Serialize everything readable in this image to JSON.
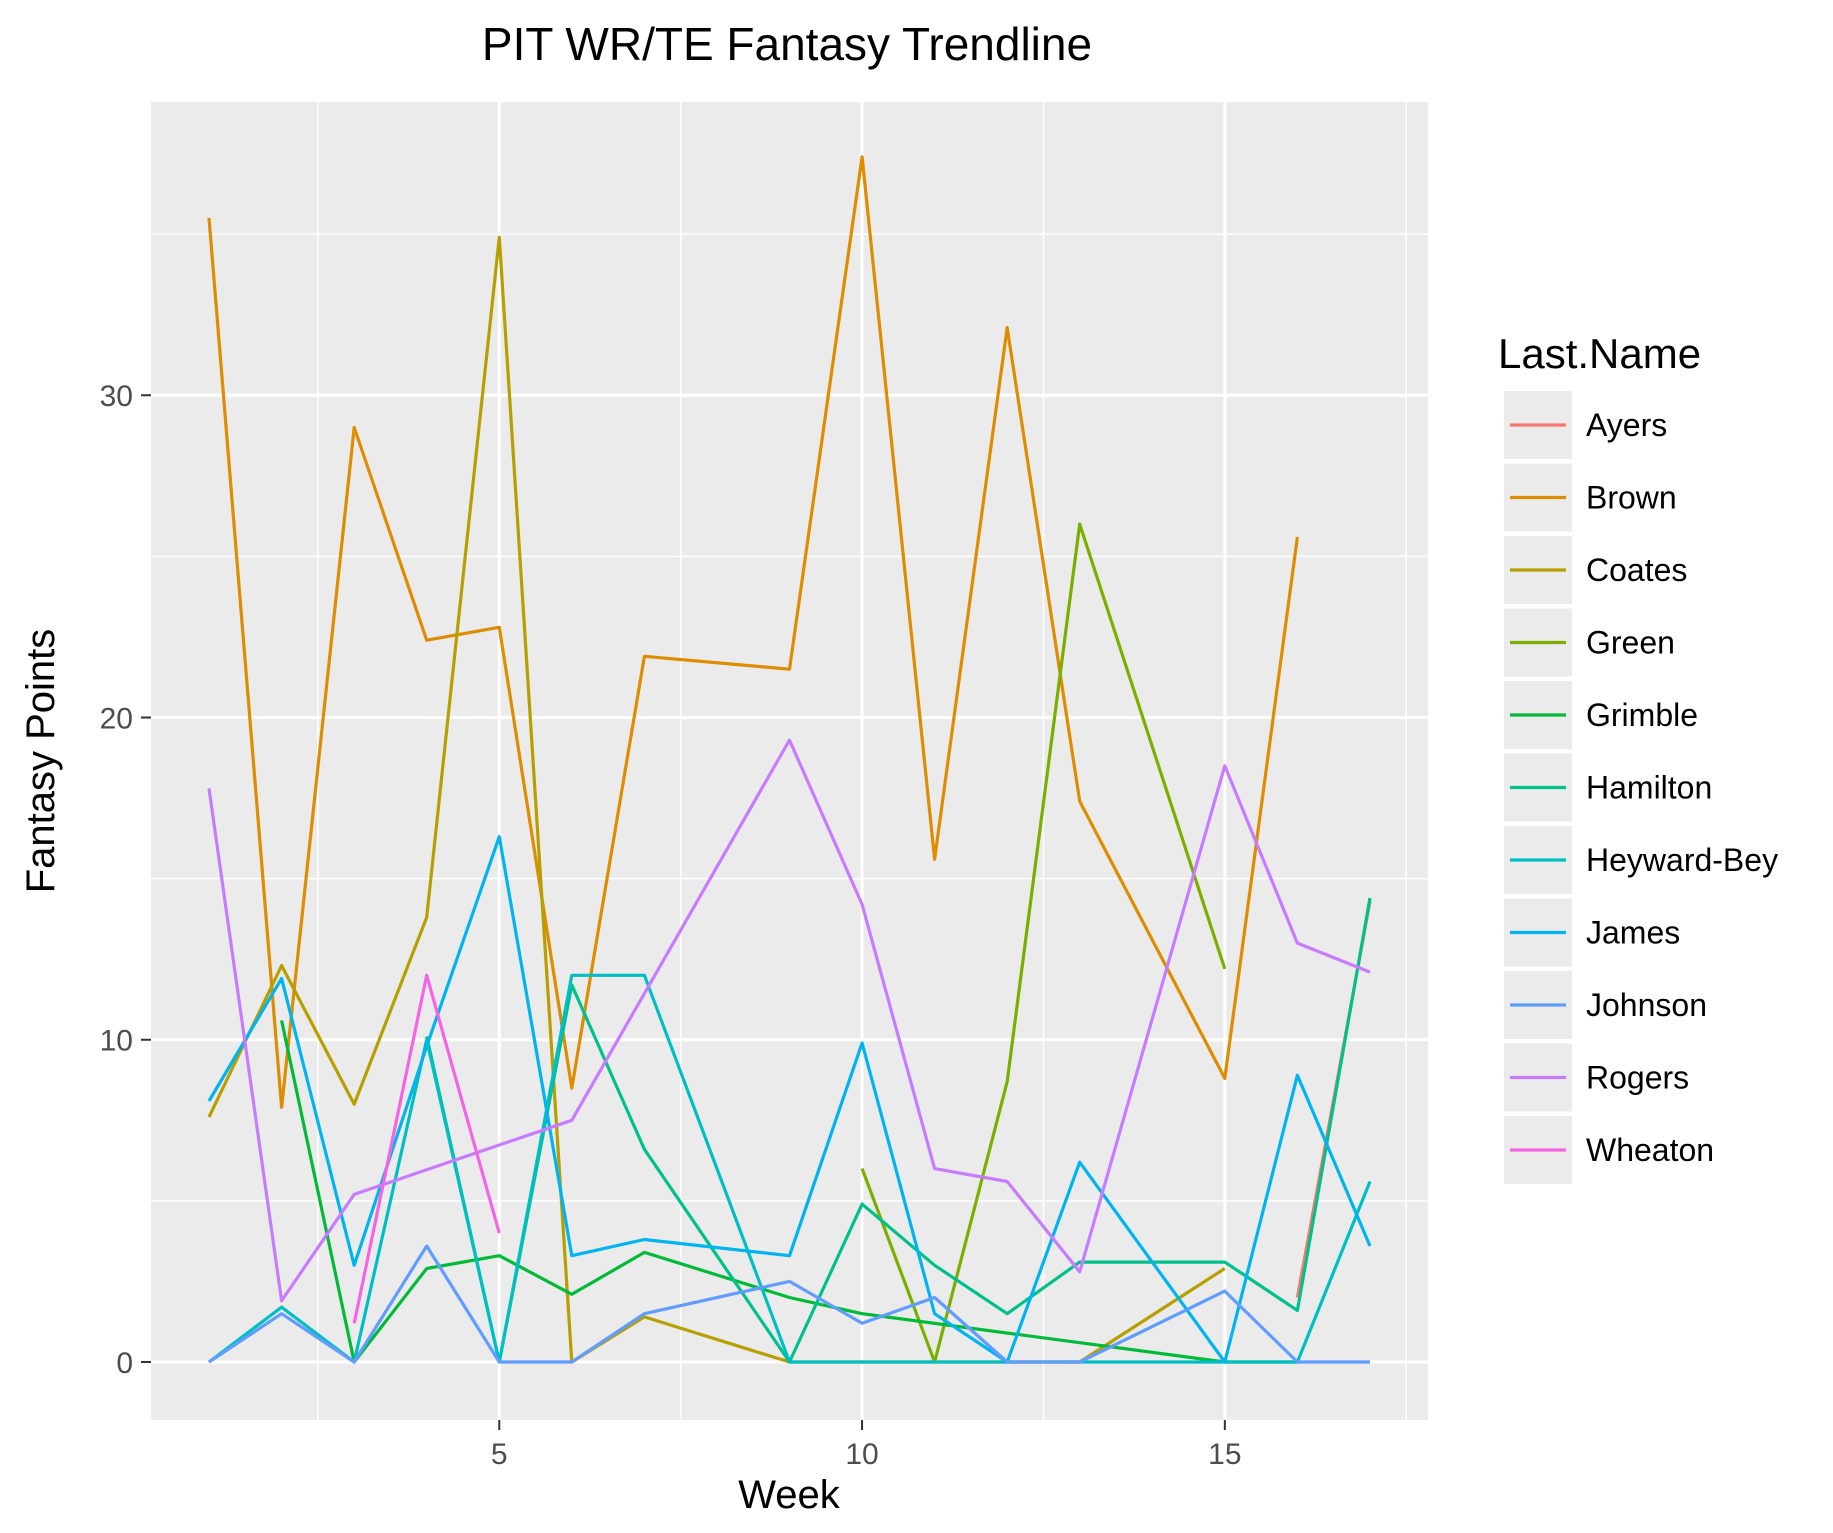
{
  "chart_data": {
    "type": "line",
    "title": "PIT WR/TE Fantasy Trendline",
    "xlabel": "Week",
    "ylabel": "Fantasy Points",
    "xlim": [
      0.2,
      17.8
    ],
    "ylim": [
      -1.8,
      39.1
    ],
    "x_ticks": [
      5,
      10,
      15
    ],
    "x_tick_labels": [
      "5",
      "10",
      "15"
    ],
    "x_minor": [
      2.5,
      7.5,
      12.5,
      17.5
    ],
    "y_ticks": [
      0,
      10,
      20,
      30
    ],
    "y_tick_labels": [
      "0",
      "10",
      "20",
      "30"
    ],
    "y_minor": [
      5,
      15,
      25,
      35
    ],
    "grid": true,
    "legend": {
      "title": "Last.Name",
      "position": "right"
    },
    "series": [
      {
        "name": "Ayers",
        "color": "#F8766D",
        "points": [
          [
            16,
            2.0
          ],
          [
            17,
            14.3
          ]
        ]
      },
      {
        "name": "Brown",
        "color": "#DE8C00",
        "points": [
          [
            1,
            35.5
          ],
          [
            2,
            7.9
          ],
          [
            3,
            29.0
          ],
          [
            4,
            22.4
          ],
          [
            5,
            22.8
          ],
          [
            6,
            8.5
          ],
          [
            7,
            21.9
          ],
          [
            9,
            21.5
          ],
          [
            10,
            37.4
          ],
          [
            11,
            15.6
          ],
          [
            12,
            32.1
          ],
          [
            13,
            17.4
          ],
          [
            15,
            8.8
          ],
          [
            16,
            25.6
          ]
        ]
      },
      {
        "name": "Coates",
        "color": "#B79F00",
        "points": [
          [
            1,
            7.6
          ],
          [
            2,
            12.3
          ],
          [
            3,
            8.0
          ],
          [
            4,
            13.8
          ],
          [
            5,
            34.9
          ],
          [
            6,
            0.0
          ],
          [
            7,
            1.4
          ],
          [
            9,
            0.0
          ],
          [
            13,
            0.0
          ],
          [
            15,
            2.9
          ]
        ]
      },
      {
        "name": "Green",
        "color": "#7CAE00",
        "points": [
          [
            10,
            6.0
          ],
          [
            11,
            0.0
          ],
          [
            12,
            8.7
          ],
          [
            13,
            26.0
          ],
          [
            15,
            12.2
          ]
        ]
      },
      {
        "name": "Grimble",
        "color": "#00BA38",
        "points": [
          [
            2,
            10.6
          ],
          [
            3,
            0.0
          ],
          [
            4,
            2.9
          ],
          [
            5,
            3.3
          ],
          [
            6,
            2.1
          ],
          [
            7,
            3.4
          ],
          [
            9,
            2.0
          ],
          [
            10,
            1.5
          ],
          [
            15,
            0.0
          ],
          [
            16,
            0.0
          ]
        ]
      },
      {
        "name": "Hamilton",
        "color": "#00C08B",
        "points": [
          [
            4,
            10.1
          ],
          [
            5,
            0.0
          ],
          [
            6,
            11.7
          ],
          [
            7,
            6.6
          ],
          [
            9,
            0.0
          ],
          [
            10,
            4.9
          ],
          [
            11,
            3.0
          ],
          [
            12,
            1.5
          ],
          [
            13,
            3.1
          ],
          [
            15,
            3.1
          ],
          [
            16,
            1.6
          ],
          [
            17,
            14.4
          ]
        ]
      },
      {
        "name": "Heyward-Bey",
        "color": "#00BFC4",
        "points": [
          [
            1,
            0.0
          ],
          [
            2,
            1.7
          ],
          [
            3,
            0.0
          ],
          [
            4,
            10.0
          ],
          [
            5,
            0.0
          ],
          [
            6,
            12.0
          ],
          [
            7,
            12.0
          ],
          [
            9,
            0.0
          ],
          [
            16,
            0.0
          ],
          [
            17,
            5.6
          ]
        ]
      },
      {
        "name": "James",
        "color": "#00B4F0",
        "points": [
          [
            1,
            8.1
          ],
          [
            2,
            11.9
          ],
          [
            3,
            3.0
          ],
          [
            4,
            9.8
          ],
          [
            5,
            16.3
          ],
          [
            6,
            3.3
          ],
          [
            7,
            3.8
          ],
          [
            9,
            3.3
          ],
          [
            10,
            9.9
          ],
          [
            11,
            1.5
          ],
          [
            12,
            0.0
          ],
          [
            13,
            6.2
          ],
          [
            15,
            0.0
          ],
          [
            16,
            8.9
          ],
          [
            17,
            3.6
          ]
        ]
      },
      {
        "name": "Johnson",
        "color": "#619CFF",
        "points": [
          [
            1,
            0.0
          ],
          [
            2,
            1.5
          ],
          [
            3,
            0.0
          ],
          [
            4,
            3.6
          ],
          [
            5,
            0.0
          ],
          [
            6,
            0.0
          ],
          [
            7,
            1.5
          ],
          [
            9,
            2.5
          ],
          [
            10,
            1.2
          ],
          [
            11,
            2.0
          ],
          [
            12,
            0.0
          ],
          [
            13,
            0.0
          ],
          [
            15,
            2.2
          ],
          [
            16,
            0.0
          ],
          [
            17,
            0.0
          ]
        ]
      },
      {
        "name": "Rogers",
        "color": "#C77CFF",
        "points": [
          [
            1,
            17.8
          ],
          [
            2,
            1.9
          ],
          [
            3,
            5.2
          ],
          [
            6,
            7.5
          ],
          [
            9,
            19.3
          ],
          [
            10,
            14.2
          ],
          [
            11,
            6.0
          ],
          [
            12,
            5.6
          ],
          [
            13,
            2.8
          ],
          [
            15,
            18.5
          ],
          [
            16,
            13.0
          ],
          [
            17,
            12.1
          ]
        ]
      },
      {
        "name": "Wheaton",
        "color": "#F564E3",
        "points": [
          [
            3,
            1.2
          ],
          [
            4,
            12.0
          ],
          [
            5,
            4.0
          ]
        ]
      }
    ]
  }
}
